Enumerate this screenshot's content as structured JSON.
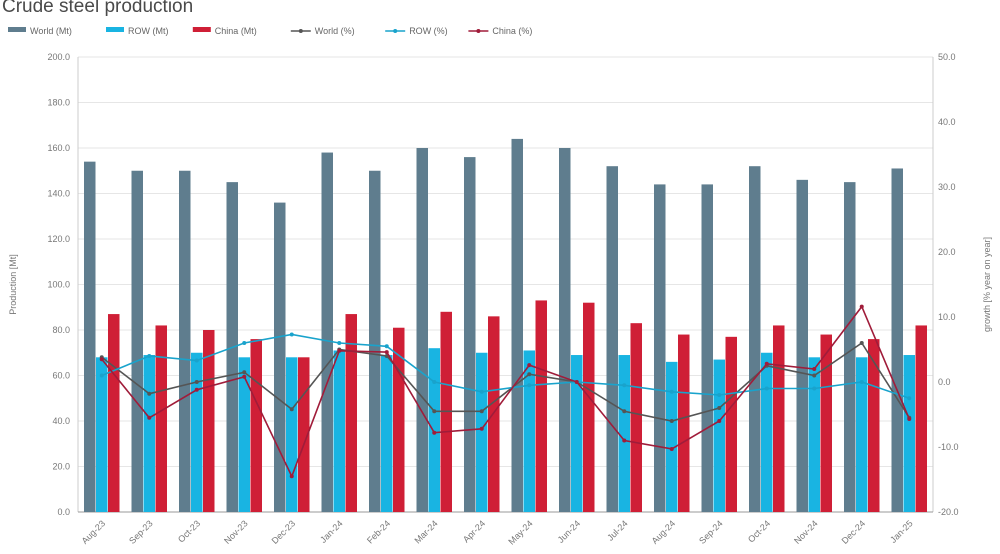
{
  "chart_data": {
    "type": "bar",
    "title": "Crude steel production",
    "ylabel": "Production [Mt]",
    "y2label": "growth [% year on year]",
    "ylim": [
      0,
      200
    ],
    "y2lim": [
      -20,
      50
    ],
    "yticks": [
      "0.0",
      "20.0",
      "40.0",
      "60.0",
      "80.0",
      "100.0",
      "120.0",
      "140.0",
      "160.0",
      "180.0",
      "200.0"
    ],
    "y2ticks": [
      "-20.0",
      "-10.0",
      "0.0",
      "10.0",
      "20.0",
      "30.0",
      "40.0",
      "50.0"
    ],
    "grid": true,
    "legend_position": "top",
    "categories": [
      "Aug-23",
      "Sep-23",
      "Oct-23",
      "Nov-23",
      "Dec-23",
      "Jan-24",
      "Feb-24",
      "Mar-24",
      "Apr-24",
      "May-24",
      "Jun-24",
      "Jul-24",
      "Aug-24",
      "Sep-24",
      "Oct-24",
      "Nov-24",
      "Dec-24",
      "Jan-25"
    ],
    "bar_series": [
      {
        "name": "World (Mt)",
        "color": "#5f7d8e",
        "values": [
          154,
          150,
          150,
          145,
          136,
          158,
          150,
          160,
          156,
          164,
          160,
          152,
          144,
          144,
          152,
          146,
          145,
          151
        ]
      },
      {
        "name": "ROW (Mt)",
        "color": "#19b4e2",
        "values": [
          68,
          69,
          70,
          68,
          68,
          71,
          69,
          72,
          70,
          71,
          69,
          69,
          66,
          67,
          70,
          68,
          68,
          69
        ]
      },
      {
        "name": "China (Mt)",
        "color": "#cf1f36",
        "values": [
          87,
          82,
          80,
          76,
          68,
          87,
          81,
          88,
          86,
          93,
          92,
          83,
          78,
          77,
          82,
          78,
          76,
          82
        ]
      }
    ],
    "line_series": [
      {
        "name": "World (%)",
        "color": "#555555",
        "values": [
          3.8,
          -1.8,
          0.0,
          1.5,
          -4.2,
          5.0,
          4.0,
          -4.5,
          -4.5,
          1.2,
          0.0,
          -4.5,
          -6.0,
          -4.0,
          2.5,
          1.0,
          6.0,
          -5.5
        ]
      },
      {
        "name": "ROW (%)",
        "color": "#19a3cc",
        "values": [
          1.0,
          4.0,
          3.3,
          6.0,
          7.3,
          6.0,
          5.5,
          0.0,
          -1.5,
          -0.5,
          0.0,
          -0.5,
          -1.5,
          -2.0,
          -1.0,
          -1.0,
          0.0,
          -2.5
        ]
      },
      {
        "name": "China (%)",
        "color": "#a01c3a",
        "values": [
          3.5,
          -5.5,
          -1.2,
          0.8,
          -14.5,
          4.8,
          4.6,
          -7.8,
          -7.2,
          2.6,
          0.0,
          -9.0,
          -10.3,
          -6.0,
          2.8,
          2.0,
          11.6,
          -5.7
        ]
      }
    ]
  }
}
